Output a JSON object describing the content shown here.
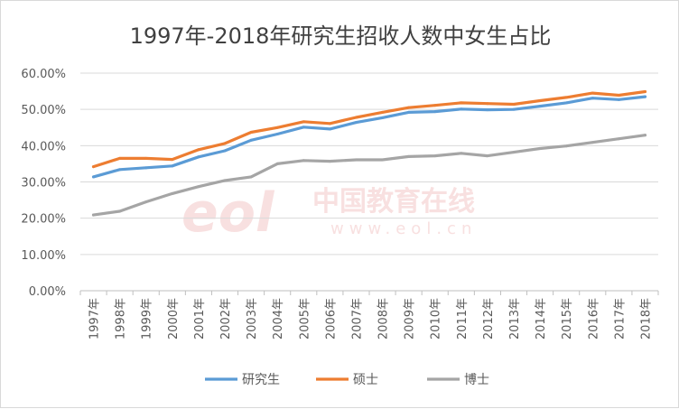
{
  "chart_data": {
    "type": "line",
    "title": "1997年-2018年研究生招收人数中女生占比",
    "categories": [
      "1997年",
      "1998年",
      "1999年",
      "2000年",
      "2001年",
      "2002年",
      "2003年",
      "2004年",
      "2005年",
      "2006年",
      "2007年",
      "2008年",
      "2009年",
      "2010年",
      "2011年",
      "2012年",
      "2013年",
      "2014年",
      "2015年",
      "2016年",
      "2017年",
      "2018年"
    ],
    "series": [
      {
        "name": "研究生",
        "color": "#5b9bd5",
        "values": [
          0.314,
          0.334,
          0.339,
          0.344,
          0.369,
          0.386,
          0.415,
          0.432,
          0.451,
          0.446,
          0.464,
          0.477,
          0.492,
          0.494,
          0.501,
          0.499,
          0.5,
          0.509,
          0.518,
          0.531,
          0.527,
          0.535
        ]
      },
      {
        "name": "硕士",
        "color": "#ed7d31",
        "values": [
          0.342,
          0.365,
          0.365,
          0.362,
          0.389,
          0.406,
          0.437,
          0.45,
          0.466,
          0.461,
          0.478,
          0.492,
          0.505,
          0.511,
          0.518,
          0.516,
          0.514,
          0.524,
          0.533,
          0.545,
          0.539,
          0.549
        ]
      },
      {
        "name": "博士",
        "color": "#a5a5a5",
        "values": [
          0.209,
          0.219,
          0.245,
          0.268,
          0.287,
          0.304,
          0.314,
          0.35,
          0.359,
          0.357,
          0.361,
          0.361,
          0.37,
          0.372,
          0.379,
          0.372,
          0.382,
          0.392,
          0.399,
          0.409,
          0.419,
          0.429
        ]
      }
    ],
    "yticks": [
      "0.00%",
      "10.00%",
      "20.00%",
      "30.00%",
      "40.00%",
      "50.00%",
      "60.00%"
    ],
    "ylim": [
      0,
      0.6
    ],
    "grid": true,
    "legend": "bottom"
  },
  "watermark": {
    "main": "中国教育在线",
    "sub": "www.eol.cn",
    "logo": "eol"
  }
}
